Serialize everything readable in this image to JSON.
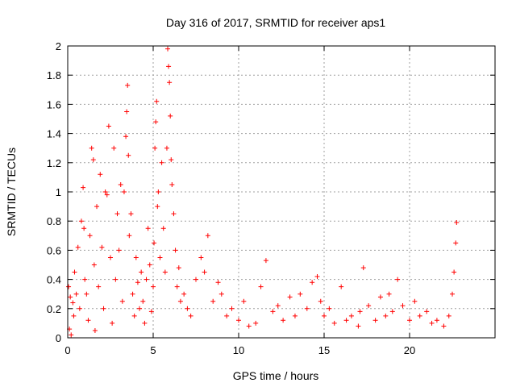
{
  "chart_data": {
    "type": "scatter",
    "title": "Day 316 of 2017, SRMTID for receiver aps1",
    "xlabel": "GPS time / hours",
    "ylabel": "SRMTID / TECUs",
    "xlim": [
      0,
      25
    ],
    "ylim": [
      0,
      2
    ],
    "x_ticks": [
      0,
      5,
      10,
      15,
      20
    ],
    "x_tick_labels": [
      "0",
      "5",
      "10",
      "15",
      "20"
    ],
    "y_ticks": [
      0,
      0.2,
      0.4,
      0.6,
      0.8,
      1,
      1.2,
      1.4,
      1.6,
      1.8,
      2
    ],
    "y_tick_labels": [
      "0",
      "0.2",
      "0.4",
      "0.6",
      "0.8",
      "1",
      "1.2",
      "1.4",
      "1.6",
      "1.8",
      "2"
    ],
    "grid": true,
    "marker": "+",
    "marker_color": "#ff0000",
    "series": [
      {
        "name": "SRMTID",
        "x": [
          0.05,
          0.1,
          0.15,
          0.2,
          0.3,
          0.35,
          0.4,
          0.5,
          0.6,
          0.7,
          0.8,
          0.9,
          0.95,
          1.0,
          1.1,
          1.2,
          1.3,
          1.4,
          1.5,
          1.55,
          1.6,
          1.7,
          1.8,
          1.9,
          2.0,
          2.1,
          2.2,
          2.3,
          2.4,
          2.5,
          2.6,
          2.7,
          2.8,
          2.9,
          3.0,
          3.1,
          3.2,
          3.3,
          3.4,
          3.45,
          3.5,
          3.55,
          3.6,
          3.7,
          3.8,
          3.9,
          4.0,
          4.1,
          4.2,
          4.3,
          4.4,
          4.5,
          4.6,
          4.7,
          4.8,
          4.9,
          5.0,
          5.05,
          5.1,
          5.15,
          5.2,
          5.25,
          5.3,
          5.4,
          5.5,
          5.6,
          5.7,
          5.8,
          5.85,
          5.9,
          5.95,
          6.0,
          6.05,
          6.1,
          6.2,
          6.3,
          6.4,
          6.5,
          6.6,
          6.8,
          7.0,
          7.2,
          7.5,
          7.8,
          8.0,
          8.2,
          8.5,
          8.8,
          9.0,
          9.3,
          9.6,
          10.0,
          10.3,
          10.6,
          11.0,
          11.3,
          11.6,
          12.0,
          12.3,
          12.6,
          13.0,
          13.3,
          13.6,
          14.0,
          14.3,
          14.6,
          14.8,
          15.0,
          15.3,
          15.6,
          16.0,
          16.3,
          16.6,
          17.0,
          17.1,
          17.3,
          17.6,
          18.0,
          18.3,
          18.6,
          18.8,
          19.0,
          19.3,
          19.6,
          20.0,
          20.3,
          20.6,
          21.0,
          21.3,
          21.6,
          22.0,
          22.3,
          22.5,
          22.6,
          22.7,
          22.75
        ],
        "y": [
          0.35,
          0.06,
          0.28,
          0.02,
          0.24,
          0.15,
          0.45,
          0.3,
          0.62,
          0.2,
          0.8,
          1.03,
          0.75,
          0.4,
          0.3,
          0.12,
          0.7,
          1.3,
          1.22,
          0.5,
          0.05,
          0.9,
          0.35,
          1.12,
          0.62,
          0.2,
          1.0,
          0.98,
          1.45,
          0.55,
          0.1,
          1.3,
          0.4,
          0.85,
          0.6,
          1.05,
          0.25,
          1.0,
          1.38,
          1.55,
          1.73,
          1.25,
          0.7,
          0.85,
          0.3,
          0.15,
          0.55,
          0.38,
          0.2,
          0.45,
          0.25,
          0.1,
          0.4,
          0.75,
          0.5,
          0.18,
          0.35,
          0.65,
          1.3,
          1.48,
          1.62,
          0.9,
          1.0,
          0.55,
          1.2,
          0.75,
          0.45,
          1.3,
          1.98,
          1.86,
          1.75,
          1.52,
          1.22,
          1.05,
          0.85,
          0.6,
          0.35,
          0.48,
          0.25,
          0.3,
          0.2,
          0.15,
          0.4,
          0.55,
          0.45,
          0.7,
          0.25,
          0.38,
          0.3,
          0.15,
          0.2,
          0.12,
          0.25,
          0.08,
          0.1,
          0.35,
          0.53,
          0.18,
          0.22,
          0.12,
          0.28,
          0.15,
          0.3,
          0.2,
          0.38,
          0.42,
          0.25,
          0.15,
          0.2,
          0.1,
          0.35,
          0.12,
          0.15,
          0.08,
          0.18,
          0.48,
          0.22,
          0.12,
          0.28,
          0.15,
          0.3,
          0.18,
          0.4,
          0.22,
          0.12,
          0.25,
          0.15,
          0.18,
          0.1,
          0.12,
          0.08,
          0.15,
          0.3,
          0.45,
          0.65,
          0.79
        ]
      }
    ]
  }
}
